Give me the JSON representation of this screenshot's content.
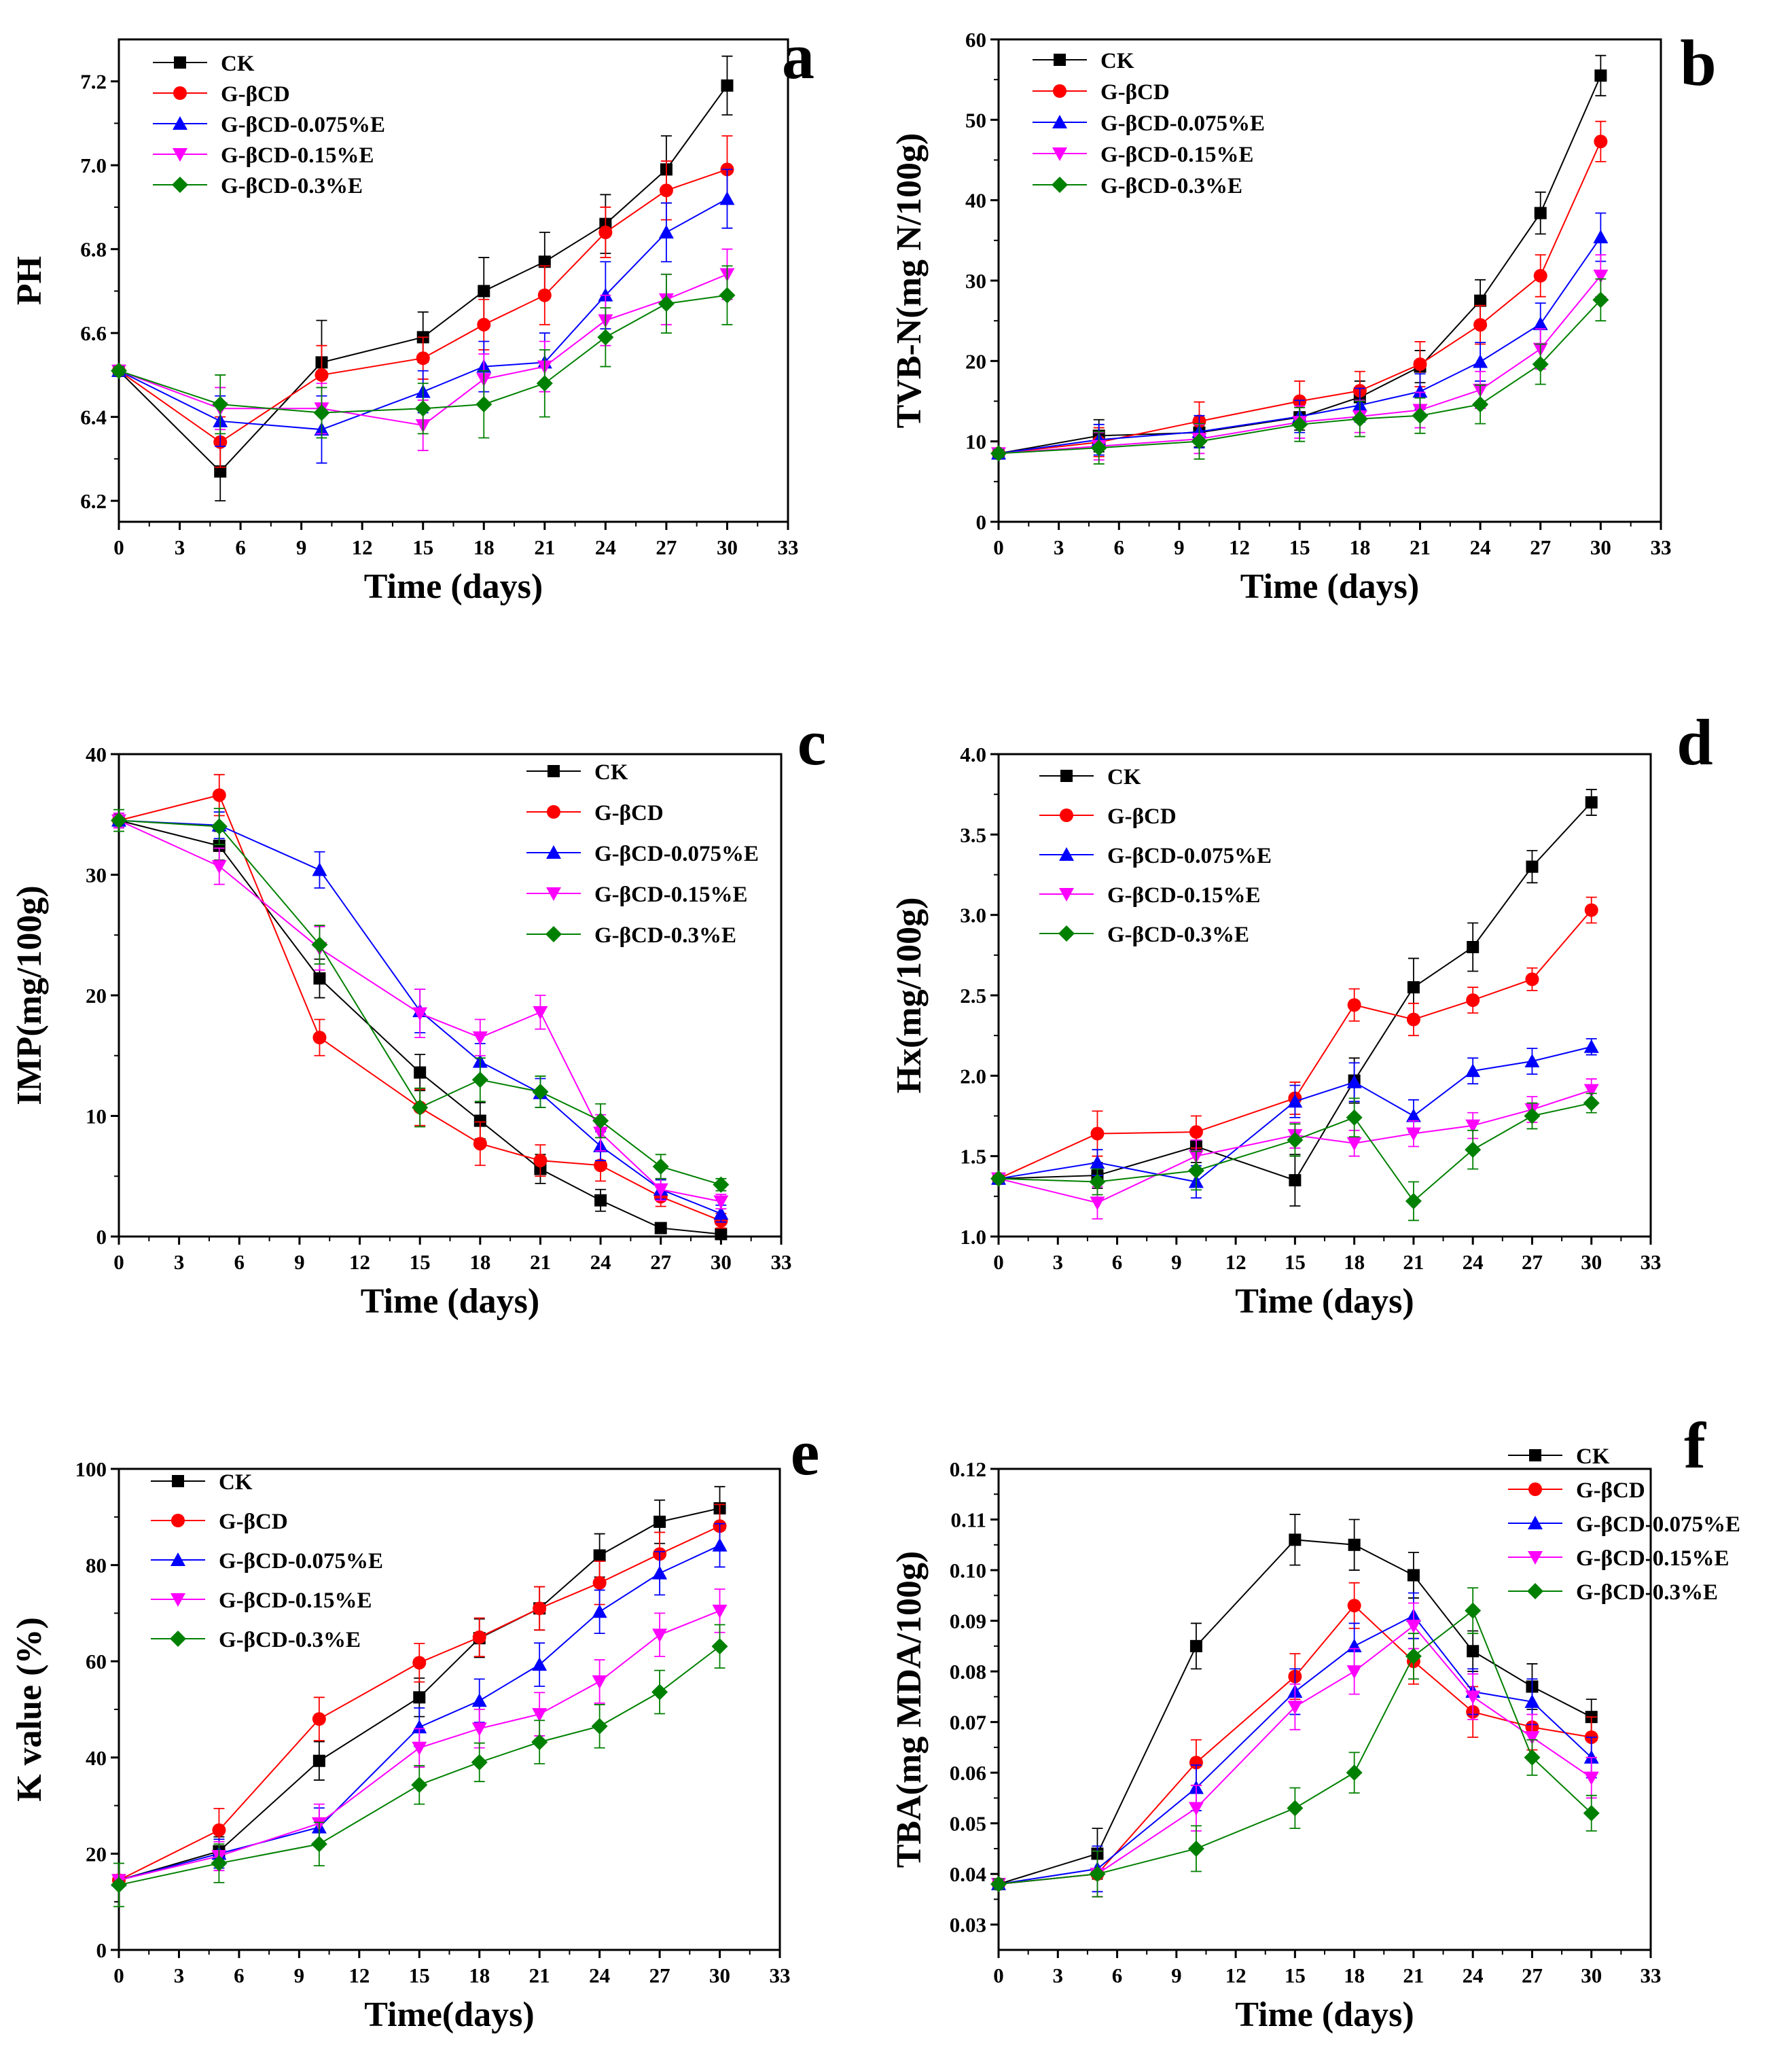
{
  "chart_data": [
    {
      "type": "line",
      "panel_letter": "a",
      "xlabel": "Time (days)",
      "ylabel": "PH",
      "xlim": [
        0,
        33
      ],
      "ylim": [
        6.15,
        7.3
      ],
      "xticks": [
        0,
        3,
        6,
        9,
        12,
        15,
        18,
        21,
        24,
        27,
        30,
        33
      ],
      "yticks": [
        6.2,
        6.4,
        6.6,
        6.8,
        7.0,
        7.2
      ],
      "ytick_labels": [
        "6.2",
        "6.4",
        "6.6",
        "6.8",
        "7.0",
        "7.2"
      ],
      "legend_position": "top-left",
      "x": [
        0,
        5,
        10,
        15,
        18,
        21,
        24,
        27,
        30
      ],
      "series": [
        {
          "name": "CK",
          "values": [
            6.51,
            6.27,
            6.53,
            6.59,
            6.7,
            6.77,
            6.86,
            6.99,
            7.19
          ],
          "errors": [
            0.01,
            0.07,
            0.1,
            0.06,
            0.08,
            0.07,
            0.07,
            0.08,
            0.07
          ]
        },
        {
          "name": "G-βCD",
          "values": [
            6.51,
            6.34,
            6.5,
            6.54,
            6.62,
            6.69,
            6.84,
            6.94,
            6.99
          ],
          "errors": [
            0.01,
            0.06,
            0.07,
            0.05,
            0.06,
            0.07,
            0.06,
            0.07,
            0.08
          ]
        },
        {
          "name": "G-βCD-0.075%E",
          "values": [
            6.51,
            6.39,
            6.37,
            6.46,
            6.52,
            6.53,
            6.69,
            6.84,
            6.92
          ],
          "errors": [
            0.01,
            0.06,
            0.08,
            0.05,
            0.06,
            0.07,
            0.08,
            0.07,
            0.07
          ]
        },
        {
          "name": "G-βCD-0.15%E",
          "values": [
            6.51,
            6.42,
            6.42,
            6.38,
            6.49,
            6.52,
            6.63,
            6.68,
            6.74
          ],
          "errors": [
            0.01,
            0.05,
            0.06,
            0.06,
            0.06,
            0.06,
            0.06,
            0.06,
            0.06
          ]
        },
        {
          "name": "G-βCD-0.3%E",
          "values": [
            6.51,
            6.43,
            6.41,
            6.42,
            6.43,
            6.48,
            6.59,
            6.67,
            6.69
          ],
          "errors": [
            0.01,
            0.07,
            0.06,
            0.06,
            0.08,
            0.08,
            0.07,
            0.07,
            0.07
          ]
        }
      ]
    },
    {
      "type": "line",
      "panel_letter": "b",
      "xlabel": "Time (days)",
      "ylabel": "TVB-N(mg N/100g)",
      "xlim": [
        0,
        33
      ],
      "ylim": [
        0,
        60
      ],
      "xticks": [
        0,
        3,
        6,
        9,
        12,
        15,
        18,
        21,
        24,
        27,
        30,
        33
      ],
      "yticks": [
        0,
        10,
        20,
        30,
        40,
        50,
        60
      ],
      "ytick_labels": [
        "0",
        "10",
        "20",
        "30",
        "40",
        "50",
        "60"
      ],
      "legend_position": "top-left",
      "x": [
        0,
        5,
        10,
        15,
        18,
        21,
        24,
        27,
        30
      ],
      "series": [
        {
          "name": "CK",
          "values": [
            8.5,
            10.7,
            11.1,
            13.0,
            15.5,
            19.3,
            27.5,
            38.4,
            55.5
          ],
          "errors": [
            0.5,
            2.0,
            1.8,
            1.6,
            2.0,
            2.0,
            2.6,
            2.6,
            2.5
          ]
        },
        {
          "name": "G-βCD",
          "values": [
            8.5,
            9.9,
            12.5,
            15.0,
            16.3,
            19.6,
            24.5,
            30.6,
            47.3
          ],
          "errors": [
            0.5,
            1.8,
            2.4,
            2.5,
            2.4,
            2.8,
            2.4,
            2.6,
            2.5
          ]
        },
        {
          "name": "G-βCD-0.075%E",
          "values": [
            8.5,
            10.2,
            11.2,
            13.1,
            14.5,
            16.2,
            19.9,
            24.6,
            35.4
          ],
          "errors": [
            0.5,
            1.9,
            2.0,
            2.0,
            2.1,
            2.2,
            2.4,
            2.6,
            3.0
          ]
        },
        {
          "name": "G-βCD-0.15%E",
          "values": [
            8.5,
            9.4,
            10.3,
            12.4,
            13.1,
            13.9,
            16.4,
            21.5,
            30.6
          ],
          "errors": [
            0.5,
            1.7,
            1.8,
            2.0,
            2.0,
            2.2,
            2.3,
            2.5,
            2.6
          ]
        },
        {
          "name": "G-βCD-0.3%E",
          "values": [
            8.5,
            9.2,
            10.0,
            12.1,
            12.8,
            13.2,
            14.6,
            19.6,
            27.6
          ],
          "errors": [
            0.5,
            2.0,
            2.2,
            2.1,
            2.2,
            2.2,
            2.4,
            2.5,
            2.6
          ]
        }
      ]
    },
    {
      "type": "line",
      "panel_letter": "c",
      "xlabel": "Time (days)",
      "ylabel": "IMP(mg/100g)",
      "xlim": [
        0,
        33
      ],
      "ylim": [
        0,
        40
      ],
      "xticks": [
        0,
        3,
        6,
        9,
        12,
        15,
        18,
        21,
        24,
        27,
        30,
        33
      ],
      "yticks": [
        0,
        10,
        20,
        30,
        40
      ],
      "ytick_labels": [
        "0",
        "10",
        "20",
        "30",
        "40"
      ],
      "legend_position": "top-right",
      "x": [
        0,
        5,
        10,
        15,
        18,
        21,
        24,
        27,
        30
      ],
      "series": [
        {
          "name": "CK",
          "values": [
            34.5,
            32.4,
            21.4,
            13.6,
            9.6,
            5.6,
            3.0,
            0.7,
            0.2
          ],
          "errors": [
            0.6,
            1.2,
            1.6,
            1.5,
            1.5,
            1.2,
            0.9,
            0.4,
            0.2
          ]
        },
        {
          "name": "G-βCD",
          "values": [
            34.5,
            36.6,
            16.5,
            10.7,
            7.7,
            6.3,
            5.9,
            3.3,
            1.3
          ],
          "errors": [
            0.6,
            1.7,
            1.5,
            1.5,
            1.8,
            1.3,
            1.3,
            0.8,
            0.6
          ]
        },
        {
          "name": "G-βCD-0.075%E",
          "values": [
            34.5,
            34.1,
            30.4,
            18.7,
            14.5,
            11.9,
            7.5,
            3.9,
            1.9
          ],
          "errors": [
            0.6,
            1.1,
            1.5,
            1.8,
            1.5,
            1.2,
            1.2,
            0.8,
            0.7
          ]
        },
        {
          "name": "G-βCD-0.15%E",
          "values": [
            34.5,
            30.7,
            23.9,
            18.5,
            16.5,
            18.6,
            8.6,
            3.9,
            2.9
          ],
          "errors": [
            0.6,
            1.5,
            1.8,
            2.0,
            1.5,
            1.4,
            1.5,
            0.9,
            0.6
          ]
        },
        {
          "name": "G-βCD-0.3%E",
          "values": [
            34.5,
            34.0,
            24.2,
            10.7,
            13.0,
            12.0,
            9.6,
            5.8,
            4.3
          ],
          "errors": [
            0.9,
            1.5,
            1.6,
            1.6,
            1.8,
            1.3,
            1.4,
            1.0,
            0.5
          ]
        }
      ]
    },
    {
      "type": "line",
      "panel_letter": "d",
      "xlabel": "Time (days)",
      "ylabel": "Hx(mg/100g)",
      "xlim": [
        0,
        33
      ],
      "ylim": [
        1.0,
        4.0
      ],
      "xticks": [
        0,
        3,
        6,
        9,
        12,
        15,
        18,
        21,
        24,
        27,
        30,
        33
      ],
      "yticks": [
        1.0,
        1.5,
        2.0,
        2.5,
        3.0,
        3.5,
        4.0
      ],
      "ytick_labels": [
        "1.0",
        "1.5",
        "2.0",
        "2.5",
        "3.0",
        "3.5",
        "4.0"
      ],
      "legend_position": "top-left",
      "x": [
        0,
        5,
        10,
        15,
        18,
        21,
        24,
        27,
        30
      ],
      "series": [
        {
          "name": "CK",
          "values": [
            1.36,
            1.38,
            1.56,
            1.35,
            1.97,
            2.55,
            2.8,
            3.3,
            3.7
          ],
          "errors": [
            0.02,
            0.08,
            0.1,
            0.16,
            0.14,
            0.18,
            0.15,
            0.1,
            0.08
          ]
        },
        {
          "name": "G-βCD",
          "values": [
            1.36,
            1.64,
            1.65,
            1.86,
            2.44,
            2.35,
            2.47,
            2.6,
            3.03
          ],
          "errors": [
            0.02,
            0.14,
            0.1,
            0.1,
            0.1,
            0.1,
            0.08,
            0.07,
            0.08
          ]
        },
        {
          "name": "G-βCD-0.075%E",
          "values": [
            1.36,
            1.46,
            1.34,
            1.84,
            1.96,
            1.75,
            2.03,
            2.09,
            2.18
          ],
          "errors": [
            0.02,
            0.08,
            0.1,
            0.1,
            0.12,
            0.1,
            0.08,
            0.08,
            0.05
          ]
        },
        {
          "name": "G-βCD-0.15%E",
          "values": [
            1.36,
            1.21,
            1.5,
            1.63,
            1.58,
            1.64,
            1.69,
            1.79,
            1.91
          ],
          "errors": [
            0.02,
            0.1,
            0.1,
            0.08,
            0.08,
            0.08,
            0.08,
            0.08,
            0.07
          ]
        },
        {
          "name": "G-βCD-0.3%E",
          "values": [
            1.36,
            1.34,
            1.41,
            1.6,
            1.74,
            1.22,
            1.54,
            1.75,
            1.83
          ],
          "errors": [
            0.02,
            0.08,
            0.12,
            0.1,
            0.12,
            0.12,
            0.12,
            0.08,
            0.06
          ]
        }
      ]
    },
    {
      "type": "line",
      "panel_letter": "e",
      "xlabel": "Time(days)",
      "ylabel": "K value (%)",
      "xlim": [
        0,
        33
      ],
      "ylim": [
        0,
        100
      ],
      "xticks": [
        0,
        3,
        6,
        9,
        12,
        15,
        18,
        21,
        24,
        27,
        30,
        33
      ],
      "yticks": [
        0,
        20,
        40,
        60,
        80,
        100
      ],
      "ytick_labels": [
        "0",
        "20",
        "40",
        "60",
        "80",
        "100"
      ],
      "legend_position": "top-left",
      "x": [
        0,
        5,
        10,
        15,
        18,
        21,
        24,
        27,
        30
      ],
      "series": [
        {
          "name": "CK",
          "values": [
            14.5,
            20.5,
            39.3,
            52.5,
            64.8,
            71.0,
            82.0,
            89.0,
            91.8
          ],
          "errors": [
            1.0,
            3.0,
            4.0,
            4.0,
            4.0,
            4.5,
            4.5,
            4.5,
            4.5
          ]
        },
        {
          "name": "G-βCD",
          "values": [
            14.5,
            24.9,
            48.0,
            59.7,
            65.0,
            71.0,
            76.3,
            82.3,
            88.1
          ],
          "errors": [
            1.0,
            4.5,
            4.5,
            4.0,
            4.0,
            4.5,
            4.5,
            4.5,
            4.5
          ]
        },
        {
          "name": "G-βCD-0.075%E",
          "values": [
            14.5,
            20.0,
            25.5,
            46.3,
            51.8,
            59.3,
            70.3,
            78.3,
            84.1
          ],
          "errors": [
            1.0,
            3.0,
            4.0,
            4.0,
            4.5,
            4.5,
            4.5,
            4.5,
            4.5
          ]
        },
        {
          "name": "G-βCD-0.15%E",
          "values": [
            14.5,
            19.5,
            26.3,
            42.0,
            46.0,
            49.0,
            55.8,
            65.5,
            70.5
          ],
          "errors": [
            1.0,
            3.0,
            4.0,
            4.0,
            4.0,
            4.5,
            4.5,
            4.5,
            4.5
          ]
        },
        {
          "name": "G-βCD-0.3%E",
          "values": [
            13.5,
            18.0,
            22.0,
            34.3,
            39.0,
            43.2,
            46.5,
            53.6,
            63.1
          ],
          "errors": [
            4.5,
            4.0,
            4.5,
            4.0,
            4.0,
            4.5,
            4.5,
            4.5,
            4.5
          ]
        }
      ]
    },
    {
      "type": "line",
      "panel_letter": "f",
      "xlabel": "Time (days)",
      "ylabel": "TBA(mg MDA/100g)",
      "xlim": [
        0,
        33
      ],
      "ylim": [
        0.025,
        0.12
      ],
      "xticks": [
        0,
        3,
        6,
        9,
        12,
        15,
        18,
        21,
        24,
        27,
        30,
        33
      ],
      "yticks": [
        0.03,
        0.04,
        0.05,
        0.06,
        0.07,
        0.08,
        0.09,
        0.1,
        0.11,
        0.12
      ],
      "ytick_labels": [
        "0.03",
        "0.04",
        "0.05",
        "0.06",
        "0.07",
        "0.08",
        "0.09",
        "0.10",
        "0.11",
        "0.12"
      ],
      "legend_position": "top-right",
      "x": [
        0,
        5,
        10,
        15,
        18,
        21,
        24,
        27,
        30
      ],
      "series": [
        {
          "name": "CK",
          "values": [
            0.038,
            0.044,
            0.085,
            0.106,
            0.105,
            0.099,
            0.084,
            0.077,
            0.071
          ],
          "errors": [
            0.001,
            0.005,
            0.0045,
            0.005,
            0.005,
            0.0045,
            0.004,
            0.0045,
            0.0035
          ]
        },
        {
          "name": "G-βCD",
          "values": [
            0.038,
            0.04,
            0.062,
            0.079,
            0.093,
            0.082,
            0.072,
            0.069,
            0.067
          ],
          "errors": [
            0.001,
            0.0045,
            0.0045,
            0.0045,
            0.0045,
            0.0045,
            0.005,
            0.0045,
            0.004
          ]
        },
        {
          "name": "G-βCD-0.075%E",
          "values": [
            0.038,
            0.041,
            0.057,
            0.076,
            0.085,
            0.091,
            0.076,
            0.074,
            0.063
          ],
          "errors": [
            0.001,
            0.0045,
            0.0045,
            0.0045,
            0.0045,
            0.0045,
            0.0045,
            0.0045,
            0.004
          ]
        },
        {
          "name": "G-βCD-0.15%E",
          "values": [
            0.038,
            0.04,
            0.053,
            0.073,
            0.08,
            0.089,
            0.075,
            0.067,
            0.059
          ],
          "errors": [
            0.001,
            0.0045,
            0.0045,
            0.0045,
            0.0045,
            0.0045,
            0.0045,
            0.0045,
            0.004
          ]
        },
        {
          "name": "G-βCD-0.3%E",
          "values": [
            0.038,
            0.04,
            0.045,
            0.053,
            0.06,
            0.083,
            0.092,
            0.063,
            0.052
          ],
          "errors": [
            0.001,
            0.0045,
            0.0045,
            0.004,
            0.004,
            0.0045,
            0.0045,
            0.0035,
            0.0035
          ]
        }
      ]
    }
  ],
  "series_styles": [
    {
      "color": "#000000",
      "marker": "square"
    },
    {
      "color": "#ff0000",
      "marker": "circle"
    },
    {
      "color": "#0000ff",
      "marker": "triangle-up"
    },
    {
      "color": "#ff00ff",
      "marker": "triangle-down"
    },
    {
      "color": "#008000",
      "marker": "diamond"
    }
  ]
}
